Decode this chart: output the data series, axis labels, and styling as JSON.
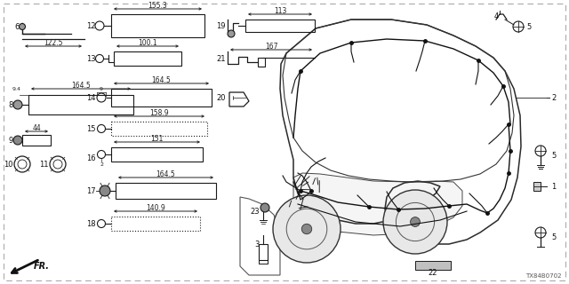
{
  "bg_color": "#ffffff",
  "diagram_id": "TX84B0702",
  "line_color": "#1a1a1a",
  "text_color": "#111111",
  "dim_color": "#222222",
  "border_dash": true,
  "items": {
    "6": {
      "label": "6",
      "measure": "122.5"
    },
    "12": {
      "label": "12",
      "measure": "155.3"
    },
    "13": {
      "label": "13",
      "measure": "100.1"
    },
    "8": {
      "label": "8",
      "measure": "164.5",
      "sub": "9.4"
    },
    "9": {
      "label": "9",
      "measure": "44"
    },
    "10": {
      "label": "10"
    },
    "11": {
      "label": "11"
    },
    "14": {
      "label": "14",
      "measure": "164.5",
      "sub": "9"
    },
    "15": {
      "label": "15",
      "measure": "158.9"
    },
    "16": {
      "label": "16",
      "measure": "151",
      "sub": "2"
    },
    "17": {
      "label": "17",
      "measure": "164.5"
    },
    "18": {
      "label": "18",
      "measure": "140.9"
    },
    "19": {
      "label": "19",
      "measure": "113"
    },
    "20": {
      "label": "20"
    },
    "21": {
      "label": "21",
      "measure": "167"
    },
    "22": {
      "label": "22"
    },
    "23": {
      "label": "23"
    },
    "3": {
      "label": "3"
    },
    "1": {
      "label": "1"
    },
    "2": {
      "label": "2"
    },
    "4": {
      "label": "4"
    },
    "5a": {
      "label": "5"
    },
    "5b": {
      "label": "5"
    },
    "5c": {
      "label": "5"
    }
  }
}
